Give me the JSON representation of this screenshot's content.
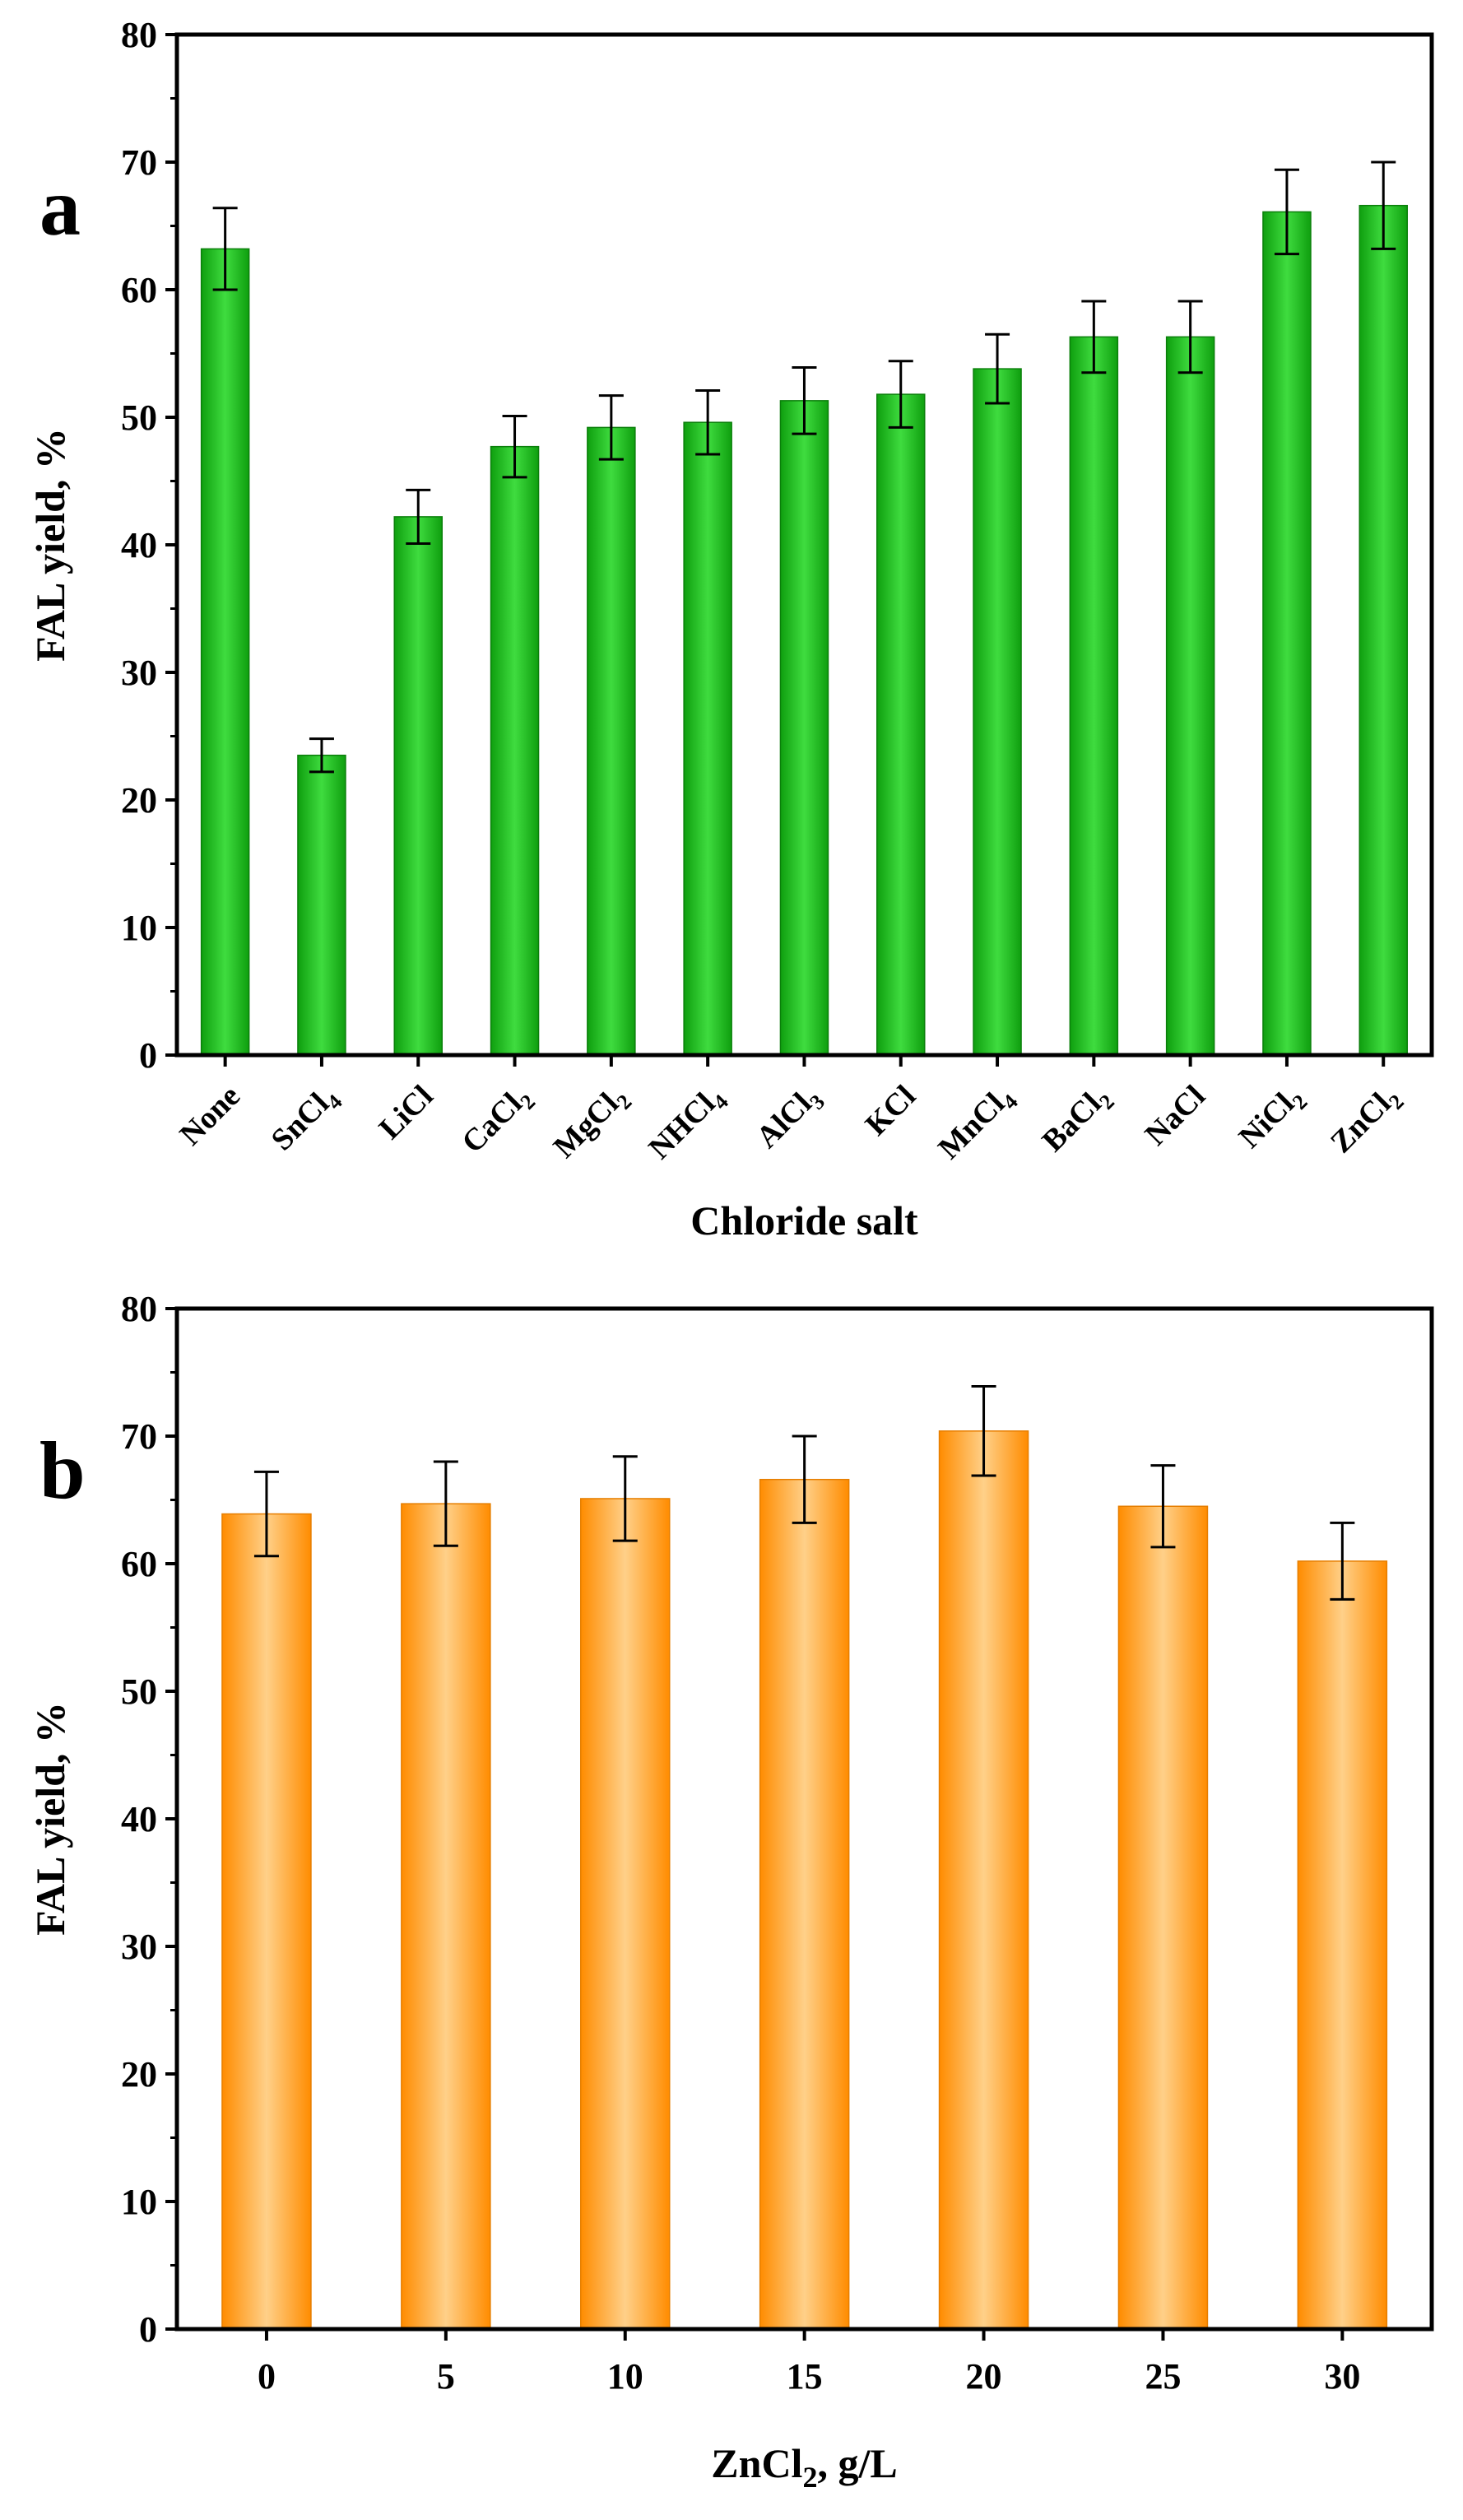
{
  "chart_data": [
    {
      "panel_label": "a",
      "type": "bar",
      "categories": [
        "None",
        "SnCl",
        "LiCl",
        "CaCl",
        "MgCl",
        "NHCl",
        "AlCl",
        "KCl",
        "MnCl",
        "BaCl",
        "NaCl",
        "NiCl",
        "ZnCl"
      ],
      "category_subscripts": [
        "",
        "4",
        "",
        "2",
        "2",
        "4",
        "3",
        "",
        "4",
        "2",
        "",
        "2",
        "2"
      ],
      "values": [
        63.2,
        23.5,
        42.2,
        47.7,
        49.2,
        49.6,
        51.3,
        51.8,
        53.8,
        56.3,
        56.3,
        66.1,
        66.6
      ],
      "errors": [
        3.2,
        1.3,
        2.1,
        2.4,
        2.5,
        2.5,
        2.6,
        2.6,
        2.7,
        2.8,
        2.8,
        3.3,
        3.4
      ],
      "yticks": [
        0,
        10,
        20,
        30,
        40,
        50,
        60,
        70,
        80
      ],
      "ylim": [
        0,
        80
      ],
      "xlabel": "Chloride salt",
      "ylabel": "FAL yield, %",
      "bar_color": "#1fbf1f",
      "bar_edge": "#0a7f0a"
    },
    {
      "panel_label": "b",
      "type": "bar",
      "categories": [
        "0",
        "5",
        "10",
        "15",
        "20",
        "25",
        "30"
      ],
      "values": [
        63.9,
        64.7,
        65.1,
        66.6,
        70.4,
        64.5,
        60.2
      ],
      "errors": [
        3.3,
        3.3,
        3.3,
        3.4,
        3.5,
        3.2,
        3.0
      ],
      "yticks": [
        0,
        10,
        20,
        30,
        40,
        50,
        60,
        70,
        80
      ],
      "ylim": [
        0,
        80
      ],
      "xlabel_main": "ZnCl",
      "xlabel_subscript": "2",
      "xlabel_suffix": ", g/L",
      "ylabel": "FAL yield, %",
      "bar_color": "#ff9a1a",
      "bar_edge": "#e67e00"
    }
  ]
}
